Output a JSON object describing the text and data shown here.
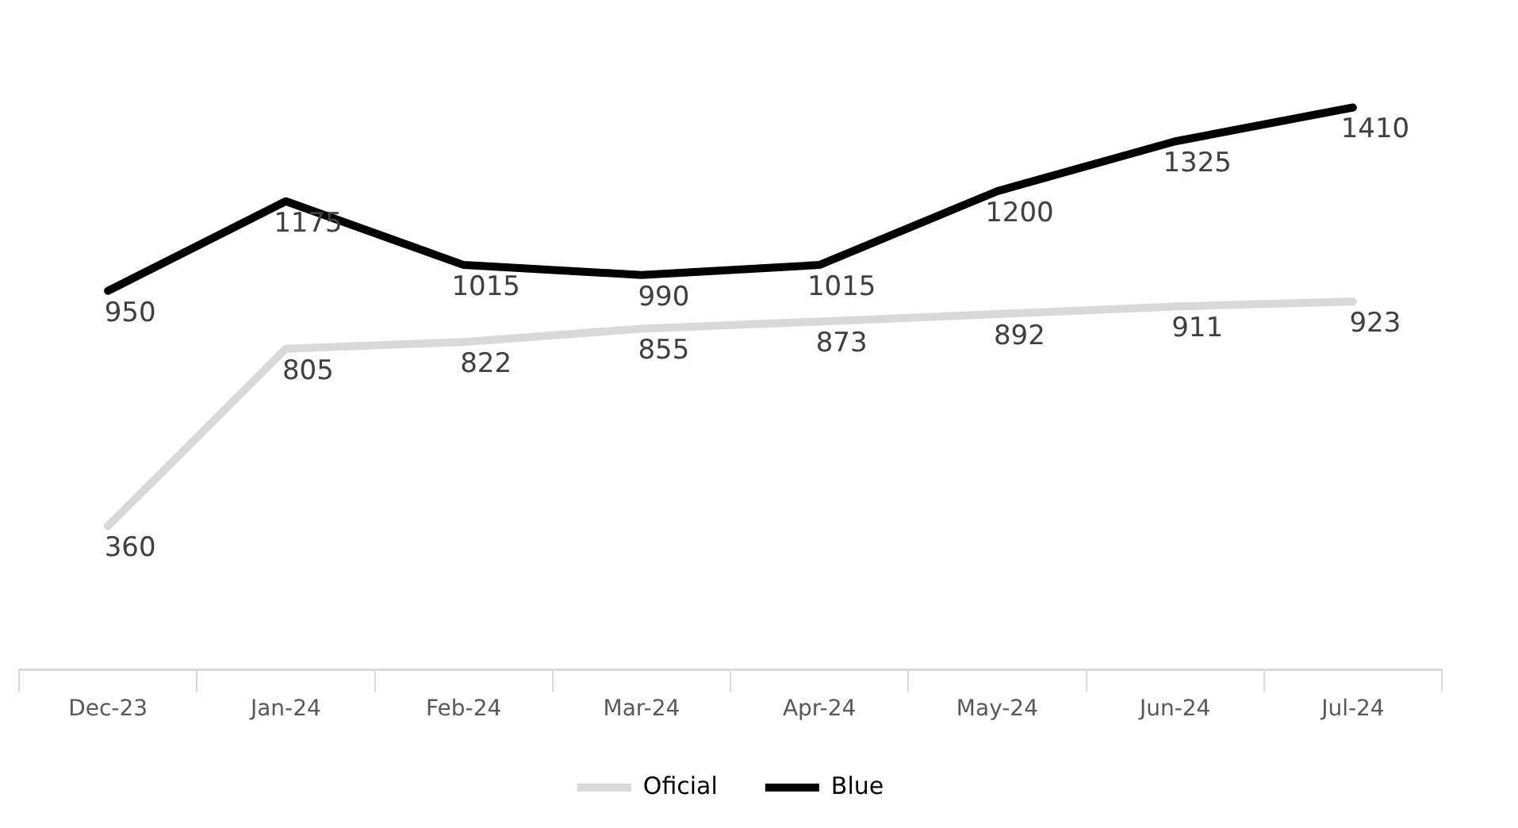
{
  "chart_data": {
    "type": "line",
    "categories": [
      "Dec-23",
      "Jan-24",
      "Feb-24",
      "Mar-24",
      "Apr-24",
      "May-24",
      "Jun-24",
      "Jul-24"
    ],
    "series": [
      {
        "name": "Oficial",
        "color": "#d9d9d9",
        "values": [
          360,
          805,
          822,
          855,
          873,
          892,
          911,
          923
        ]
      },
      {
        "name": "Blue",
        "color": "#000000",
        "values": [
          950,
          1175,
          1015,
          990,
          1015,
          1200,
          1325,
          1410
        ]
      }
    ],
    "data_labels": true,
    "legend": "bottom",
    "grid": false,
    "marker": "none",
    "line_style": "solid"
  }
}
